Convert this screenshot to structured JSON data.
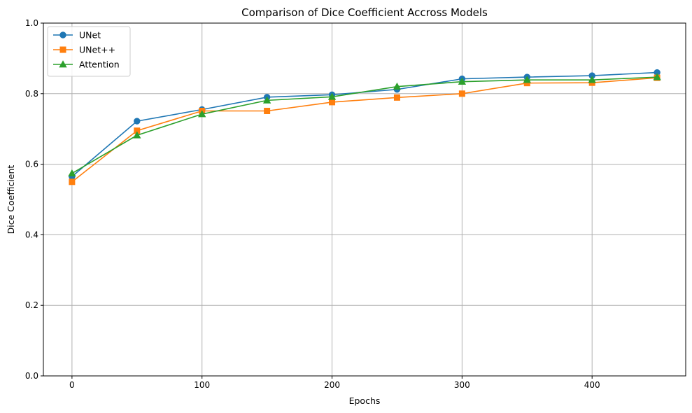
{
  "chart_data": {
    "type": "line",
    "title": "Comparison of Dice Coefficient Accross Models",
    "xlabel": "Epochs",
    "ylabel": "Dice Coefficient",
    "xlim": [
      -22,
      472
    ],
    "ylim": [
      0,
      1.0
    ],
    "xticks": [
      0,
      100,
      200,
      300,
      400
    ],
    "xtick_labels": [
      "0",
      "100",
      "200",
      "300",
      "400"
    ],
    "yticks": [
      0.0,
      0.2,
      0.4,
      0.6,
      0.8,
      1.0
    ],
    "ytick_labels": [
      "0.0",
      "0.2",
      "0.4",
      "0.6",
      "0.8",
      "1.0"
    ],
    "grid": true,
    "legend_position": "top-left",
    "x": [
      0,
      50,
      100,
      150,
      200,
      250,
      300,
      350,
      400,
      450
    ],
    "series": [
      {
        "name": "UNet",
        "color": "#1f77b4",
        "marker": "circle",
        "values": [
          0.565,
          0.722,
          0.755,
          0.79,
          0.797,
          0.812,
          0.842,
          0.847,
          0.851,
          0.86
        ]
      },
      {
        "name": "UNet++",
        "color": "#ff7f0e",
        "marker": "square",
        "values": [
          0.55,
          0.695,
          0.751,
          0.751,
          0.776,
          0.789,
          0.8,
          0.83,
          0.831,
          0.845
        ]
      },
      {
        "name": "Attention",
        "color": "#2ca02c",
        "marker": "triangle",
        "values": [
          0.574,
          0.682,
          0.742,
          0.781,
          0.791,
          0.82,
          0.834,
          0.839,
          0.839,
          0.847
        ]
      }
    ]
  }
}
